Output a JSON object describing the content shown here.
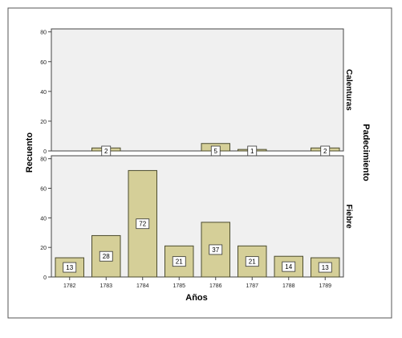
{
  "chart_data": {
    "type": "bar",
    "x_label": "Años",
    "y_label": "Recuento",
    "facet_label": "Padecimiento",
    "categories": [
      "1782",
      "1783",
      "1784",
      "1785",
      "1786",
      "1787",
      "1788",
      "1789"
    ],
    "y_ticks": [
      0,
      20,
      40,
      60,
      80
    ],
    "ylim": [
      0,
      82
    ],
    "panels": [
      {
        "name": "Calenturas",
        "values": [
          null,
          2,
          null,
          null,
          5,
          1,
          null,
          2
        ]
      },
      {
        "name": "Fiebre",
        "values": [
          13,
          28,
          72,
          21,
          37,
          21,
          14,
          13
        ]
      }
    ],
    "colors": {
      "panel_bg": "#f0f0f0",
      "bar_fill": "#d5cf98",
      "bar_stroke": "#4b4b2e",
      "frame": "#444444"
    }
  }
}
